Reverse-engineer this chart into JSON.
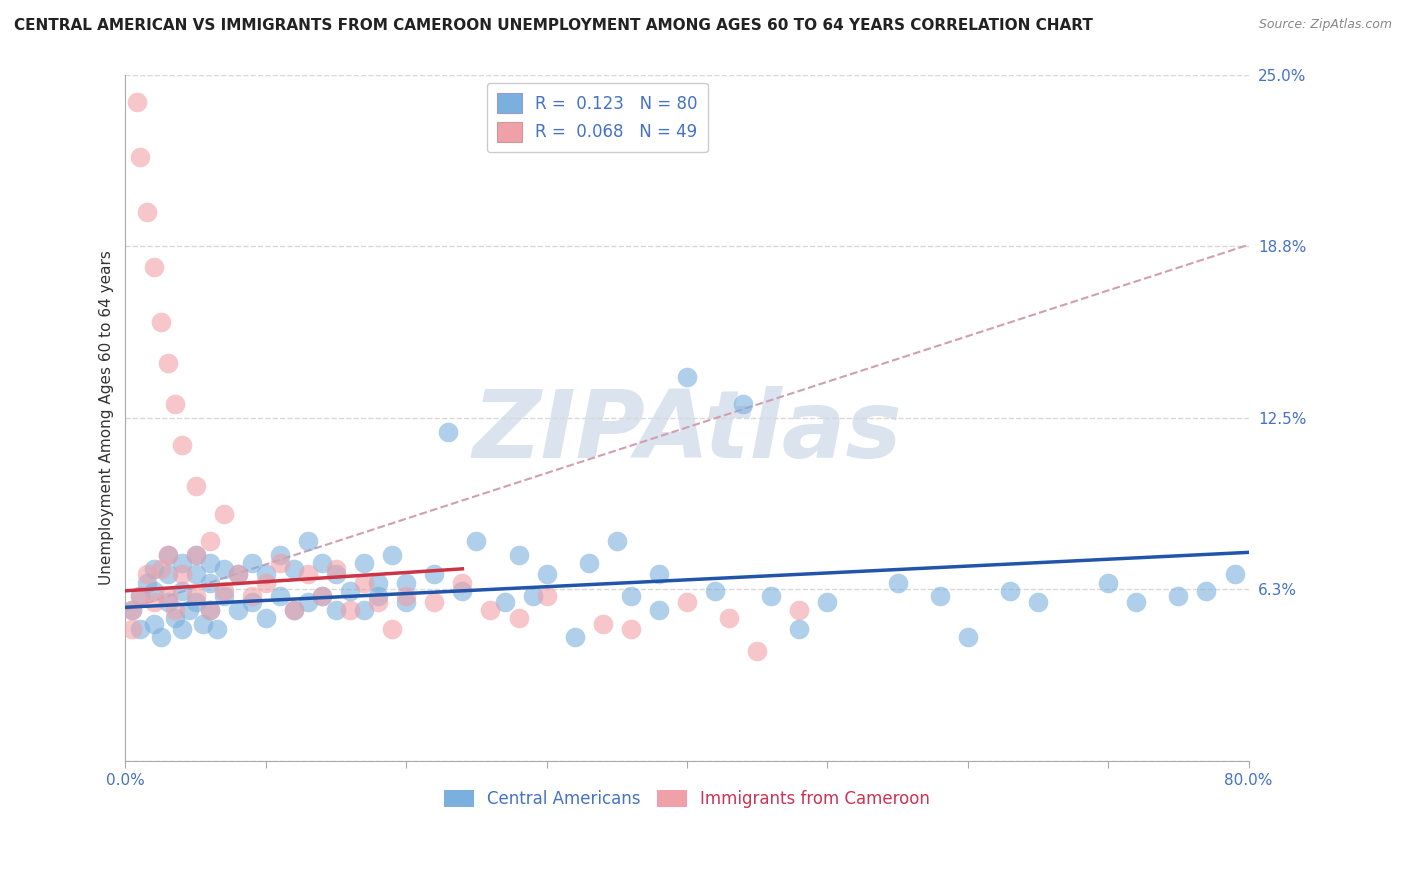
{
  "title": "CENTRAL AMERICAN VS IMMIGRANTS FROM CAMEROON UNEMPLOYMENT AMONG AGES 60 TO 64 YEARS CORRELATION CHART",
  "source": "Source: ZipAtlas.com",
  "ylabel": "Unemployment Among Ages 60 to 64 years",
  "xlim": [
    0.0,
    0.8
  ],
  "ylim": [
    0.0,
    0.25
  ],
  "yticks": [
    0.0,
    0.0625,
    0.125,
    0.1875,
    0.25
  ],
  "ytick_labels": [
    "",
    "6.3%",
    "12.5%",
    "18.8%",
    "25.0%"
  ],
  "xticks": [
    0.0,
    0.1,
    0.2,
    0.3,
    0.4,
    0.5,
    0.6,
    0.7,
    0.8
  ],
  "blue_color": "#7ab0de",
  "pink_color": "#f0a0a8",
  "trend_blue_color": "#2255aa",
  "trend_pink_color": "#cc3344",
  "trend_dashed_color": "#d0a0b0",
  "legend_R_blue": "0.123",
  "legend_N_blue": "80",
  "legend_R_pink": "0.068",
  "legend_N_pink": "49",
  "watermark": "ZIPAtlas",
  "watermark_color": "#ccd8e8",
  "blue_scatter_x": [
    0.005,
    0.01,
    0.01,
    0.015,
    0.02,
    0.02,
    0.02,
    0.025,
    0.03,
    0.03,
    0.03,
    0.035,
    0.04,
    0.04,
    0.04,
    0.045,
    0.05,
    0.05,
    0.05,
    0.055,
    0.06,
    0.06,
    0.06,
    0.065,
    0.07,
    0.07,
    0.08,
    0.08,
    0.09,
    0.09,
    0.1,
    0.1,
    0.11,
    0.11,
    0.12,
    0.12,
    0.13,
    0.13,
    0.14,
    0.14,
    0.15,
    0.15,
    0.16,
    0.17,
    0.17,
    0.18,
    0.18,
    0.19,
    0.2,
    0.2,
    0.22,
    0.23,
    0.24,
    0.25,
    0.27,
    0.28,
    0.29,
    0.3,
    0.32,
    0.33,
    0.35,
    0.36,
    0.38,
    0.38,
    0.4,
    0.42,
    0.44,
    0.46,
    0.48,
    0.5,
    0.55,
    0.58,
    0.6,
    0.63,
    0.65,
    0.7,
    0.72,
    0.75,
    0.77,
    0.79
  ],
  "blue_scatter_y": [
    0.055,
    0.06,
    0.048,
    0.065,
    0.05,
    0.062,
    0.07,
    0.045,
    0.058,
    0.068,
    0.075,
    0.052,
    0.048,
    0.062,
    0.072,
    0.055,
    0.058,
    0.068,
    0.075,
    0.05,
    0.055,
    0.065,
    0.072,
    0.048,
    0.06,
    0.07,
    0.055,
    0.068,
    0.058,
    0.072,
    0.052,
    0.068,
    0.06,
    0.075,
    0.055,
    0.07,
    0.058,
    0.08,
    0.06,
    0.072,
    0.055,
    0.068,
    0.062,
    0.072,
    0.055,
    0.065,
    0.06,
    0.075,
    0.058,
    0.065,
    0.068,
    0.12,
    0.062,
    0.08,
    0.058,
    0.075,
    0.06,
    0.068,
    0.045,
    0.072,
    0.08,
    0.06,
    0.068,
    0.055,
    0.14,
    0.062,
    0.13,
    0.06,
    0.048,
    0.058,
    0.065,
    0.06,
    0.045,
    0.062,
    0.058,
    0.065,
    0.058,
    0.06,
    0.062,
    0.068
  ],
  "pink_scatter_x": [
    0.005,
    0.005,
    0.008,
    0.01,
    0.01,
    0.015,
    0.015,
    0.02,
    0.02,
    0.025,
    0.025,
    0.03,
    0.03,
    0.03,
    0.035,
    0.035,
    0.04,
    0.04,
    0.05,
    0.05,
    0.05,
    0.06,
    0.06,
    0.07,
    0.07,
    0.08,
    0.09,
    0.1,
    0.11,
    0.12,
    0.13,
    0.14,
    0.15,
    0.16,
    0.17,
    0.18,
    0.19,
    0.2,
    0.22,
    0.24,
    0.26,
    0.28,
    0.3,
    0.34,
    0.36,
    0.4,
    0.43,
    0.45,
    0.48
  ],
  "pink_scatter_y": [
    0.055,
    0.048,
    0.24,
    0.22,
    0.06,
    0.2,
    0.068,
    0.18,
    0.058,
    0.16,
    0.07,
    0.145,
    0.06,
    0.075,
    0.13,
    0.055,
    0.115,
    0.068,
    0.1,
    0.06,
    0.075,
    0.08,
    0.055,
    0.09,
    0.062,
    0.068,
    0.06,
    0.065,
    0.072,
    0.055,
    0.068,
    0.06,
    0.07,
    0.055,
    0.065,
    0.058,
    0.048,
    0.06,
    0.058,
    0.065,
    0.055,
    0.052,
    0.06,
    0.05,
    0.048,
    0.058,
    0.052,
    0.04,
    0.055
  ],
  "blue_trend_x": [
    0.0,
    0.8
  ],
  "blue_trend_y": [
    0.056,
    0.076
  ],
  "pink_trend_x": [
    0.0,
    0.24
  ],
  "pink_trend_y": [
    0.062,
    0.07
  ],
  "dashed_trend_x": [
    0.0,
    0.8
  ],
  "dashed_trend_y": [
    0.055,
    0.188
  ],
  "background_color": "#ffffff",
  "grid_color": "#d8d8d8",
  "title_fontsize": 11,
  "axis_label_fontsize": 11,
  "tick_fontsize": 11,
  "legend_fontsize": 12,
  "source_fontsize": 9,
  "dot_size": 200,
  "dot_alpha": 0.6
}
